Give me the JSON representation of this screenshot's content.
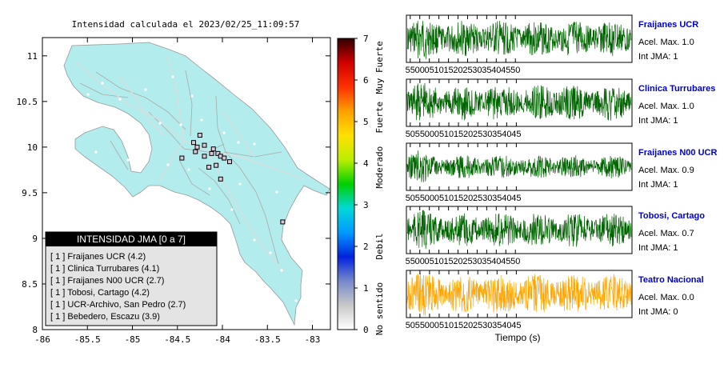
{
  "map": {
    "title": "Intensidad calculada el 2023/02/25_11:09:57",
    "x_ticks": [
      "-86",
      "-85.5",
      "-85",
      "-84.5",
      "-84",
      "-83.5",
      "-83"
    ],
    "y_ticks": [
      "11",
      "10.5",
      "10",
      "9.5",
      "9",
      "8.5",
      "8"
    ],
    "xlim": [
      -86,
      -82.8
    ],
    "ylim": [
      8,
      11.2
    ],
    "land_color": "#b3ecec",
    "stations": [
      {
        "lon": -84.25,
        "lat": 10.13
      },
      {
        "lon": -84.32,
        "lat": 10.05
      },
      {
        "lon": -84.28,
        "lat": 10.0
      },
      {
        "lon": -84.2,
        "lat": 10.02
      },
      {
        "lon": -84.1,
        "lat": 9.98
      },
      {
        "lon": -84.05,
        "lat": 9.93
      },
      {
        "lon": -84.02,
        "lat": 9.9
      },
      {
        "lon": -83.98,
        "lat": 9.88
      },
      {
        "lon": -84.12,
        "lat": 9.93
      },
      {
        "lon": -84.2,
        "lat": 9.9
      },
      {
        "lon": -84.3,
        "lat": 9.95
      },
      {
        "lon": -84.45,
        "lat": 9.88
      },
      {
        "lon": -84.07,
        "lat": 9.8
      },
      {
        "lon": -84.15,
        "lat": 9.78
      },
      {
        "lon": -83.92,
        "lat": 9.84
      },
      {
        "lon": -84.02,
        "lat": 9.65
      },
      {
        "lon": -83.33,
        "lat": 9.18
      }
    ]
  },
  "colorbar": {
    "ticks": [
      "0",
      "1",
      "2",
      "3",
      "4",
      "5",
      "6",
      "7"
    ],
    "labels": [
      {
        "text": "No sentido",
        "value": 0.5
      },
      {
        "text": "Debil",
        "value": 2
      },
      {
        "text": "Moderado",
        "value": 3.9
      },
      {
        "text": "Fuerte",
        "value": 5.1
      },
      {
        "text": "Muy Fuerte",
        "value": 6.3
      }
    ],
    "stops": [
      "#ffffff",
      "#c9c9c9",
      "#7788cc",
      "#0022dd",
      "#0099ff",
      "#00d8d8",
      "#00d000",
      "#bbee00",
      "#ffe000",
      "#ffa000",
      "#ff3000",
      "#d00000",
      "#300000"
    ]
  },
  "legend": {
    "title": "INTENSIDAD JMA [0 a 7]",
    "items": [
      "[ 1 ]  Fraijanes UCR (4.2)",
      "[ 1 ]  Clinica Turrubares (4.1)",
      "[ 1 ]  Fraijanes N00 UCR (2.7)",
      "[ 1 ]  Tobosi, Cartago (4.2)",
      "[ 1 ]  UCR-Archivo, San Pedro (2.7)",
      "[ 1 ]  Bebedero, Escazu (3.9)"
    ]
  },
  "traces": [
    {
      "name": "Fraijanes UCR",
      "accel": "Acel. Max. 1.0",
      "jma": "Int JMA: 1",
      "color": "#006400",
      "amp": 0.85,
      "ticks": [
        "55",
        "00",
        "05",
        "10",
        "15",
        "20",
        "25",
        "30",
        "35",
        "40",
        "45",
        "50"
      ],
      "first_tick": 55,
      "end_value": 53
    },
    {
      "name": "Clinica Turrubares",
      "accel": "Acel. Max. 1.0",
      "jma": "Int JMA: 1",
      "color": "#006400",
      "amp": 0.85,
      "ticks": [
        "50",
        "55",
        "00",
        "05",
        "10",
        "15",
        "20",
        "25",
        "30",
        "35",
        "40",
        "45"
      ],
      "first_tick": 50,
      "end_value": 47
    },
    {
      "name": "Fraijanes N00 UCR",
      "accel": "Acel. Max. 0.9",
      "jma": "Int JMA: 1",
      "color": "#006400",
      "amp": 0.55,
      "ticks": [
        "50",
        "55",
        "00",
        "05",
        "10",
        "15",
        "20",
        "25",
        "30",
        "35",
        "40",
        "45"
      ],
      "first_tick": 50,
      "end_value": 47
    },
    {
      "name": "Tobosi, Cartago",
      "accel": "Acel. Max. 0.7",
      "jma": "Int JMA: 1",
      "color": "#006400",
      "amp": 0.8,
      "ticks": [
        "55",
        "00",
        "05",
        "10",
        "15",
        "20",
        "25",
        "30",
        "35",
        "40",
        "45",
        "50"
      ],
      "first_tick": 55,
      "end_value": 53
    },
    {
      "name": "Teatro Nacional",
      "accel": "Acel. Max. 0.0",
      "jma": "Int JMA: 0",
      "color": "#ffa500",
      "amp": 0.95,
      "ticks": [
        "50",
        "55",
        "00",
        "05",
        "10",
        "15",
        "20",
        "25",
        "30",
        "35",
        "40",
        "45"
      ],
      "first_tick": 50,
      "end_value": 47
    }
  ],
  "xlabel": "Tiempo (s)"
}
